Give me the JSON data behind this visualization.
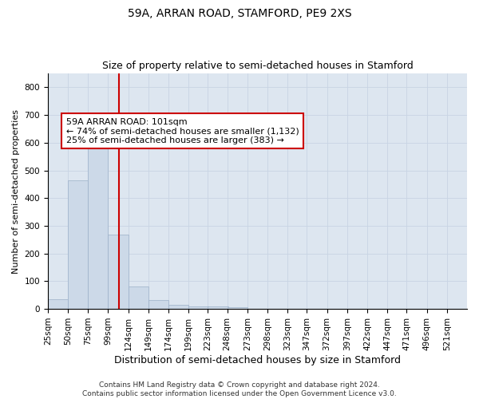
{
  "title1": "59A, ARRAN ROAD, STAMFORD, PE9 2XS",
  "title2": "Size of property relative to semi-detached houses in Stamford",
  "xlabel": "Distribution of semi-detached houses by size in Stamford",
  "ylabel": "Number of semi-detached properties",
  "bar_labels": [
    "25sqm",
    "50sqm",
    "75sqm",
    "99sqm",
    "124sqm",
    "149sqm",
    "174sqm",
    "199sqm",
    "223sqm",
    "248sqm",
    "273sqm",
    "298sqm",
    "323sqm",
    "347sqm",
    "372sqm",
    "397sqm",
    "422sqm",
    "447sqm",
    "471sqm",
    "496sqm",
    "521sqm"
  ],
  "bar_values": [
    35,
    463,
    625,
    267,
    82,
    33,
    14,
    10,
    10,
    5,
    0,
    0,
    0,
    0,
    0,
    0,
    0,
    0,
    0,
    0,
    0
  ],
  "bin_left_edges": [
    12.5,
    37.5,
    62.5,
    87.5,
    112.5,
    137.5,
    162.5,
    187.5,
    211.5,
    235.5,
    260.5,
    285.5,
    310.5,
    334.5,
    359.5,
    384.5,
    409.5,
    434.5,
    458.5,
    483.5,
    508.5
  ],
  "bin_width": 25,
  "bar_color": "#ccd9e8",
  "bar_edge_color": "#9bb0c8",
  "property_line_x": 101,
  "property_line_color": "#cc0000",
  "annotation_line1": "59A ARRAN ROAD: 101sqm",
  "annotation_line2": "← 74% of semi-detached houses are smaller (1,132)",
  "annotation_line3": "25% of semi-detached houses are larger (383) →",
  "annotation_box_color": "#ffffff",
  "annotation_box_edge_color": "#cc0000",
  "ylim": [
    0,
    850
  ],
  "xlim_left": 12.5,
  "xlim_right": 533.5,
  "yticks": [
    0,
    100,
    200,
    300,
    400,
    500,
    600,
    700,
    800
  ],
  "grid_color": "#c8d4e4",
  "background_color": "#dde6f0",
  "footer_line1": "Contains HM Land Registry data © Crown copyright and database right 2024.",
  "footer_line2": "Contains public sector information licensed under the Open Government Licence v3.0.",
  "title1_fontsize": 10,
  "title2_fontsize": 9,
  "xlabel_fontsize": 9,
  "ylabel_fontsize": 8,
  "tick_fontsize": 7.5,
  "annotation_fontsize": 8,
  "footer_fontsize": 6.5
}
